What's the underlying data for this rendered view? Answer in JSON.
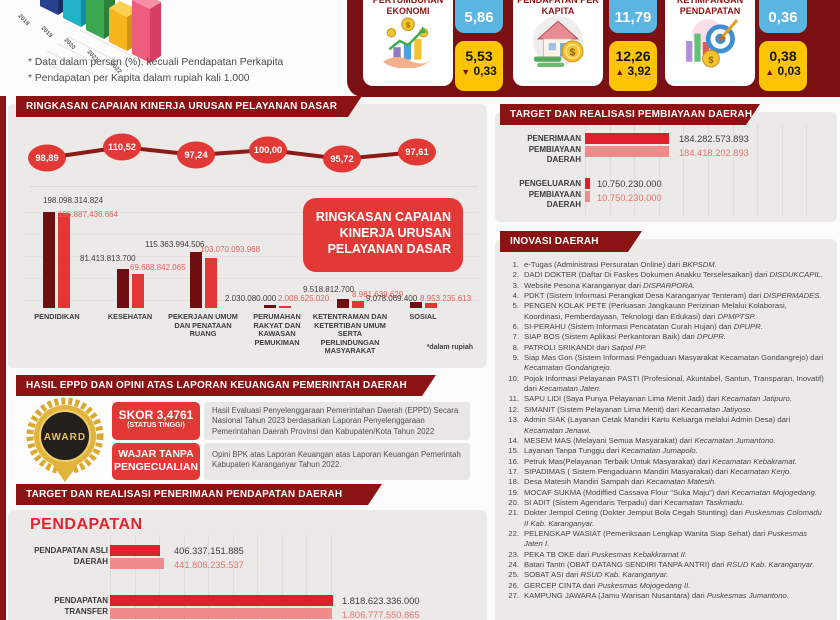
{
  "notes": {
    "line1": "* Data dalam persen (%), kecuali Pendapatan Perkapita",
    "line2": "* Pendapatan per Kapita dalam rupiah kali 1.000"
  },
  "mini_chart": {
    "years": [
      "2018",
      "2019",
      "2020",
      "2021",
      "2022"
    ]
  },
  "indicators": {
    "items": [
      {
        "label": "PERTUMBUHAN EKONOMI",
        "icon": "hand-coins-growth-icon",
        "top_value": "5,86",
        "bottom_value": "5,53",
        "arrow": "▼",
        "delta": "0,33",
        "direction": "down"
      },
      {
        "label": "PENDAPATAN PER KAPITA",
        "icon": "house-coins-icon",
        "top_value": "11,79",
        "bottom_value": "12,26",
        "arrow": "▲",
        "delta": "3,92",
        "direction": "up"
      },
      {
        "label": "KETIMPANGAN PENDAPATAN",
        "icon": "target-arrow-icon",
        "top_value": "0,36",
        "bottom_value": "0,38",
        "arrow": "▲",
        "delta": "0,03",
        "direction": "up"
      }
    ]
  },
  "kinerja": {
    "header": "RINGKASAN CAPAIAN KINERJA URUSAN PELAYANAN DASAR",
    "overlay_lines": [
      "RINGKASAN CAPAIAN",
      "KINERJA URUSAN",
      "PELAYANAN DASAR"
    ],
    "footnote": "*dalam rupiah"
  },
  "pembiayaan": {
    "header": "TARGET DAN REALISASI PEMBIAYAAN DAERAH"
  },
  "pendapatan": {
    "header": "TARGET DAN REALISASI PENERIMAAN PENDAPATAN DAERAH",
    "title": "PENDAPATAN"
  },
  "eppd": {
    "header": "HASIL EPPD DAN OPINI ATAS LAPORAN KEUANGAN PEMERINTAH DAERAH",
    "award_label": "AWARD",
    "skor_line1": "SKOR 3,4761",
    "skor_line2": "(STATUS TINGGI)",
    "skor_desc": "Hasil Evaluasi Penyelenggaraan Pemerintahan Daerah (EPPD) Secara Nasional Tahun 2023 berdasarkan Laporan Penyelenggaraan Pemerintahan Daerah Provinsi dan Kabupaten/Kota Tahun 2022",
    "wtp_line1": "WAJAR TANPA",
    "wtp_line2": "PENGECUALIAN",
    "wtp_desc": "Opini BPK atas Laporan Keuangan atas Laporan Keuangan Pemerintah Kabupaten Karanganyar Tahun 2022."
  },
  "inovasi": {
    "header": "INOVASI DAERAH",
    "items": [
      {
        "text": "e-Tugas (Administrasi Persuratan Online) dari",
        "source": "BKPSDM."
      },
      {
        "text": "DADI DOKTER (Daftar Di Faskes Dokumen Anakku Terselesaikan) dari",
        "source": "DISDUKCAPIL."
      },
      {
        "text": "Website Pesona Karanganyar dari",
        "source": "DISPARPORA."
      },
      {
        "text": "PDKT (Sistem Informasi Perangkat Desa Karanganyar Tenteram) dari",
        "source": "DISPERMADES."
      },
      {
        "text": "PENGEN KOLAK PETE (Perluasan Jangkauan Perizinan Melalui Kolaborasi, Koordinasi, Pemberdayaan, Teknologi dan Edukasi) dari",
        "source": "DPMPTSP."
      },
      {
        "text": "SI-PERAHU (Sistem Informasi Pencatatan Curah Hujan) dari",
        "source": "DPUPR."
      },
      {
        "text": "SIAP BOS (Sistem Aplikasi Perkantoran Baik) dari",
        "source": "DPUPR."
      },
      {
        "text": "PATROLI SRIKANDI dari",
        "source": "Satpol PP."
      },
      {
        "text": "Siap Mas Gon (Sistem Informasi Pengaduan Masyarakat Kecamatan Gondangrejo) dari",
        "source": "Kecamatan Gondangrejo."
      },
      {
        "text": "Pojok Informasi Pelayanan PASTI (Profesional, Akuntabel, Santun, Transparan, Inovatif) dari",
        "source": "Kecamatan Jaten."
      },
      {
        "text": "SAPU LIDI (Saya Punya Pelayanan Lima Menit Jadi) dari",
        "source": "Kecamatan Jatipuro."
      },
      {
        "text": "SIMANIT (Sistem Pelayanan Lima Menit) dari",
        "source": "Kecamatan Jatiyoso."
      },
      {
        "text": "Admin SIAK (Layanan Cetak Mandiri Kartu Keluarga melalui Admin Desa) dari",
        "source": "Kecamatan Jenawi."
      },
      {
        "text": "MESEM MAS (Melayani Semua Masyarakat) dari",
        "source": "Kecamatan Jumantono."
      },
      {
        "text": "Layanan Tanpa Tunggu dari",
        "source": "Kecamatan Jumapolo."
      },
      {
        "text": "Petruk Mas(Pelayanan Terbaik Untuk Masyarakat) dari",
        "source": "Kecamatan Kebakramat."
      },
      {
        "text": "SIPADIMAS ( Sistem Pengaduann Mandiri Masyarakat) dari",
        "source": "Kecamatan Kerjo."
      },
      {
        "text": "Desa Matesih Mandiri Sampah dari",
        "source": "Kecamatan Matesih."
      },
      {
        "text": "MOCAF SUKMA (Modiffied Cassava Flour “Suka Maju”) dari",
        "source": "Kecamatan Mojogedang."
      },
      {
        "text": "SI ADIT (Sistem Agendaris Terpadu) dari",
        "source": "Kecamatan Tasikmadu."
      },
      {
        "text": "Dokter Jempol Ceting (Dokter Jemput Bola Cegah Stunting) dari",
        "source": "Puskesmas Colomadu II Kab. Karanganyar."
      },
      {
        "text": "PELENGKAP WASIAT (Pemeriksaan Lengkap Wanita Siap Sehat) dari",
        "source": "Puskesmas Jaten I."
      },
      {
        "text": "PEKA TB OKE dari",
        "source": "Puskesmas Kebakkramat II."
      },
      {
        "text": "Batari Tantri (OBAT DATANG SENDIRI TANPA ANTRI) dari",
        "source": "RSUD Kab. Karanganyar."
      },
      {
        "text": "SOBAT ASI dari",
        "source": "RSUD Kab. Karanganyar."
      },
      {
        "text": "GERCEP CINTA dari",
        "source": "Puskesmas Mojogedang II."
      },
      {
        "text": "KAMPUNG JAWARA (Jamu Warisan Nusantara) dari",
        "source": "Puskesmas Jumantono."
      }
    ]
  },
  "chart_data": [
    {
      "type": "line",
      "name": "capaian-kinerja-line",
      "title": "RINGKASAN CAPAIAN KINERJA URUSAN PELAYANAN DASAR",
      "values": [
        98.89,
        110.52,
        97.24,
        100.0,
        95.72,
        97.61
      ],
      "labels": [
        "98,89",
        "110,52",
        "97,24",
        "100,00",
        "95,72",
        "97,61"
      ],
      "legend_position": "none",
      "grid": false
    },
    {
      "type": "bar",
      "name": "anggaran-urusan-pelayanan-dasar",
      "unit": "rupiah",
      "categories": [
        "PENDIDIKAN",
        "KESEHATAN",
        "PEKERJAAN UMUM DAN PENATAAN RUANG",
        "PERUMAHAN RAKYAT DAN KAWASAN PEMUKIMAN",
        "KETENTRAMAN DAN KETERTIBAN UMUM SERTA PERLINDUNGAN MASYARAKAT",
        "SOSIAL"
      ],
      "series": [
        {
          "name": "target",
          "values": [
            198098314824,
            81413813700,
            115363994506,
            2030080000,
            9518812700,
            9078069400
          ],
          "display": [
            "198.098.314.824",
            "81.413.813.700",
            "115.363.994.506",
            "2.030.080.000",
            "9.518.812.700",
            "9.078.069.400"
          ]
        },
        {
          "name": "realisasi",
          "values": [
            195887436664,
            69688842065,
            103070093968,
            2008625020,
            8981639629,
            8953235613
          ],
          "display": [
            "195.887.436.664",
            "69.688.842.065",
            "103.070.093.968",
            "2.008.625.020",
            "8.981.639.629",
            "8.953.235.613"
          ]
        }
      ]
    },
    {
      "type": "bar",
      "orientation": "horizontal",
      "name": "pembiayaan-daerah",
      "rows": [
        {
          "label": "PENERIMAAN PEMBIAYAAN DAERAH",
          "target": 184282573893,
          "target_display": "184.282.573.893",
          "realisasi": 184418202893,
          "realisasi_display": "184.418.202.893"
        },
        {
          "label": "PENGELUARAN PEMBIAYAAN DAERAH",
          "target": 10750230000,
          "target_display": "10.750.230.000",
          "realisasi": 10750230000,
          "realisasi_display": "10.750.230.000"
        }
      ]
    },
    {
      "type": "bar",
      "orientation": "horizontal",
      "name": "penerimaan-pendapatan-daerah",
      "rows": [
        {
          "label": "PENDAPATAN ASLI DAERAH",
          "target": 406337151885,
          "target_display": "406.337.151.885",
          "realisasi": 441806235537,
          "realisasi_display": "441.806.235.537"
        },
        {
          "label": "PENDAPATAN TRANSFER",
          "target": 1818623336000,
          "target_display": "1.818.623.336.000",
          "realisasi": 1806777550865,
          "realisasi_display": "1.806.777.550.865"
        }
      ]
    }
  ],
  "colors": {
    "maroon_panel": "#7a1013",
    "header_red": "#8c1313",
    "bright_red": "#e23936",
    "dark_bar": "#6e0f12",
    "red_bar": "#e23734",
    "crimson_bar": "#e01e2c",
    "light_bar": "#ef8b8b",
    "blue_box": "#5ab5e3",
    "yellow_box": "#fcc402",
    "panel_gray": "#eceae9"
  }
}
